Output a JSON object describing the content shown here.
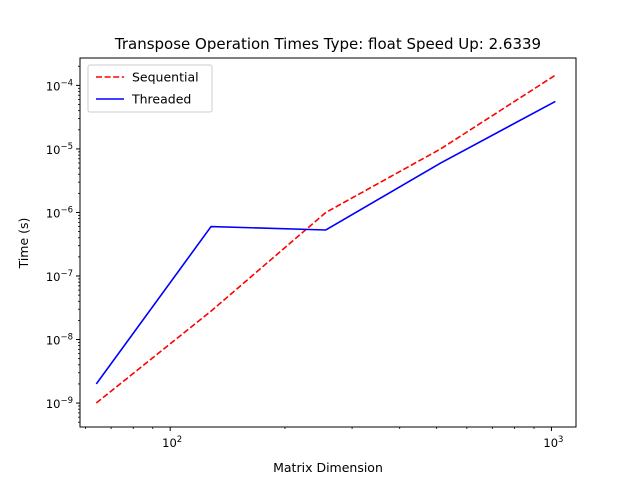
{
  "chart_data": {
    "type": "line",
    "title": "Transpose Operation Times Type: float Speed Up: 2.6339",
    "xlabel": "Matrix Dimension",
    "ylabel": "Time (s)",
    "xscale": "log",
    "yscale": "log",
    "xlim": [
      58,
      1160
    ],
    "ylim": [
      4.2e-10,
      0.00027
    ],
    "grid": false,
    "legend": "top-left",
    "xticks": [
      {
        "value": 100,
        "base": "10",
        "exp": "2"
      },
      {
        "value": 1000,
        "base": "10",
        "exp": "3"
      }
    ],
    "yticks": [
      {
        "value": 1e-09,
        "base": "10",
        "exp": "−9"
      },
      {
        "value": 1e-08,
        "base": "10",
        "exp": "−8"
      },
      {
        "value": 1e-07,
        "base": "10",
        "exp": "−7"
      },
      {
        "value": 1e-06,
        "base": "10",
        "exp": "−6"
      },
      {
        "value": 1e-05,
        "base": "10",
        "exp": "−5"
      },
      {
        "value": 0.0001,
        "base": "10",
        "exp": "−4"
      }
    ],
    "series": [
      {
        "name": "Sequential",
        "color": "#ff0000",
        "dash": "dashed",
        "x": [
          64,
          128,
          256,
          512,
          1024
        ],
        "y": [
          1e-09,
          2.8e-08,
          1e-06,
          1e-05,
          0.000145
        ]
      },
      {
        "name": "Threaded",
        "color": "#0000ff",
        "dash": "solid",
        "x": [
          64,
          128,
          256,
          512,
          1024
        ],
        "y": [
          2e-09,
          6e-07,
          5.3e-07,
          6e-06,
          5.6e-05
        ]
      }
    ]
  }
}
